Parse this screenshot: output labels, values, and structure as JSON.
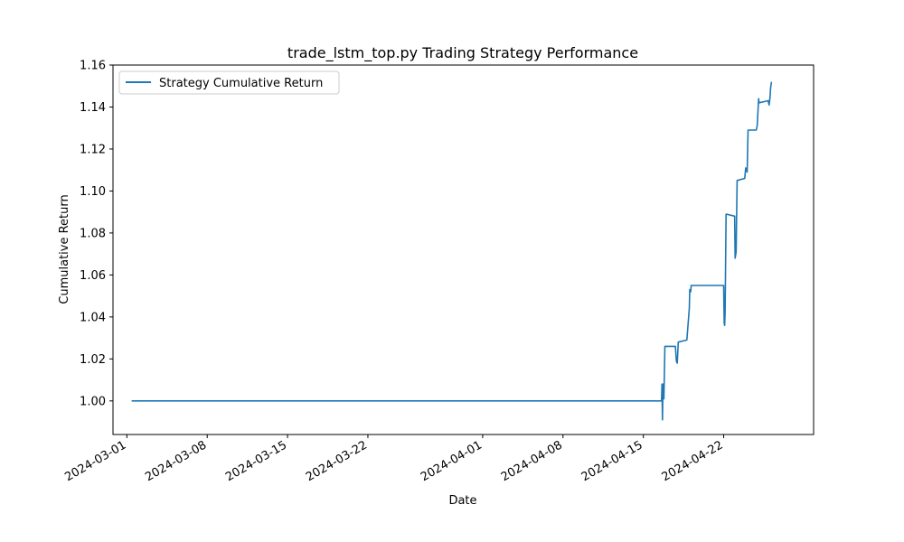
{
  "chart_data": {
    "type": "line",
    "title": "trade_lstm_top.py Trading Strategy Performance",
    "xlabel": "Date",
    "ylabel": "Cumulative Return",
    "xlim": [
      "2024-02-28T19:00",
      "2024-04-29T20:00"
    ],
    "ylim": [
      0.984,
      1.16
    ],
    "x_ticks": [
      "2024-03-01",
      "2024-03-08",
      "2024-03-15",
      "2024-03-22",
      "2024-04-01",
      "2024-04-08",
      "2024-04-15",
      "2024-04-22"
    ],
    "y_ticks": [
      1.0,
      1.02,
      1.04,
      1.06,
      1.08,
      1.1,
      1.12,
      1.14,
      1.16
    ],
    "grid": false,
    "legend_position": "upper-left",
    "colors": {
      "series": "#1f77b4"
    },
    "series": [
      {
        "name": "Strategy Cumulative Return",
        "points": [
          [
            "2024-03-01T10:00",
            1.0
          ],
          [
            "2024-04-16T14:00",
            1.0
          ],
          [
            "2024-04-16T15:00",
            1.008
          ],
          [
            "2024-04-16T16:00",
            0.991
          ],
          [
            "2024-04-16T17:00",
            1.008
          ],
          [
            "2024-04-16T19:00",
            1.001
          ],
          [
            "2024-04-16T21:00",
            1.026
          ],
          [
            "2024-04-17T19:00",
            1.026
          ],
          [
            "2024-04-17T21:00",
            1.019
          ],
          [
            "2024-04-17T23:00",
            1.018
          ],
          [
            "2024-04-18T01:00",
            1.028
          ],
          [
            "2024-04-18T19:00",
            1.029
          ],
          [
            "2024-04-19T00:00",
            1.044
          ],
          [
            "2024-04-19T01:00",
            1.053
          ],
          [
            "2024-04-19T03:00",
            1.052
          ],
          [
            "2024-04-19T04:00",
            1.055
          ],
          [
            "2024-04-22T00:00",
            1.055
          ],
          [
            "2024-04-22T01:00",
            1.037
          ],
          [
            "2024-04-22T02:00",
            1.036
          ],
          [
            "2024-04-22T03:00",
            1.042
          ],
          [
            "2024-04-22T05:00",
            1.089
          ],
          [
            "2024-04-22T23:00",
            1.088
          ],
          [
            "2024-04-23T00:00",
            1.068
          ],
          [
            "2024-04-23T02:00",
            1.071
          ],
          [
            "2024-04-23T04:00",
            1.105
          ],
          [
            "2024-04-23T20:00",
            1.106
          ],
          [
            "2024-04-23T22:00",
            1.111
          ],
          [
            "2024-04-24T01:00",
            1.109
          ],
          [
            "2024-04-24T03:00",
            1.129
          ],
          [
            "2024-04-24T20:00",
            1.129
          ],
          [
            "2024-04-24T22:00",
            1.131
          ],
          [
            "2024-04-25T01:00",
            1.144
          ],
          [
            "2024-04-25T02:00",
            1.142
          ],
          [
            "2024-04-25T21:00",
            1.143
          ],
          [
            "2024-04-25T23:00",
            1.141
          ],
          [
            "2024-04-26T01:00",
            1.145
          ],
          [
            "2024-04-26T02:00",
            1.149
          ],
          [
            "2024-04-26T04:00",
            1.152
          ]
        ]
      }
    ]
  }
}
